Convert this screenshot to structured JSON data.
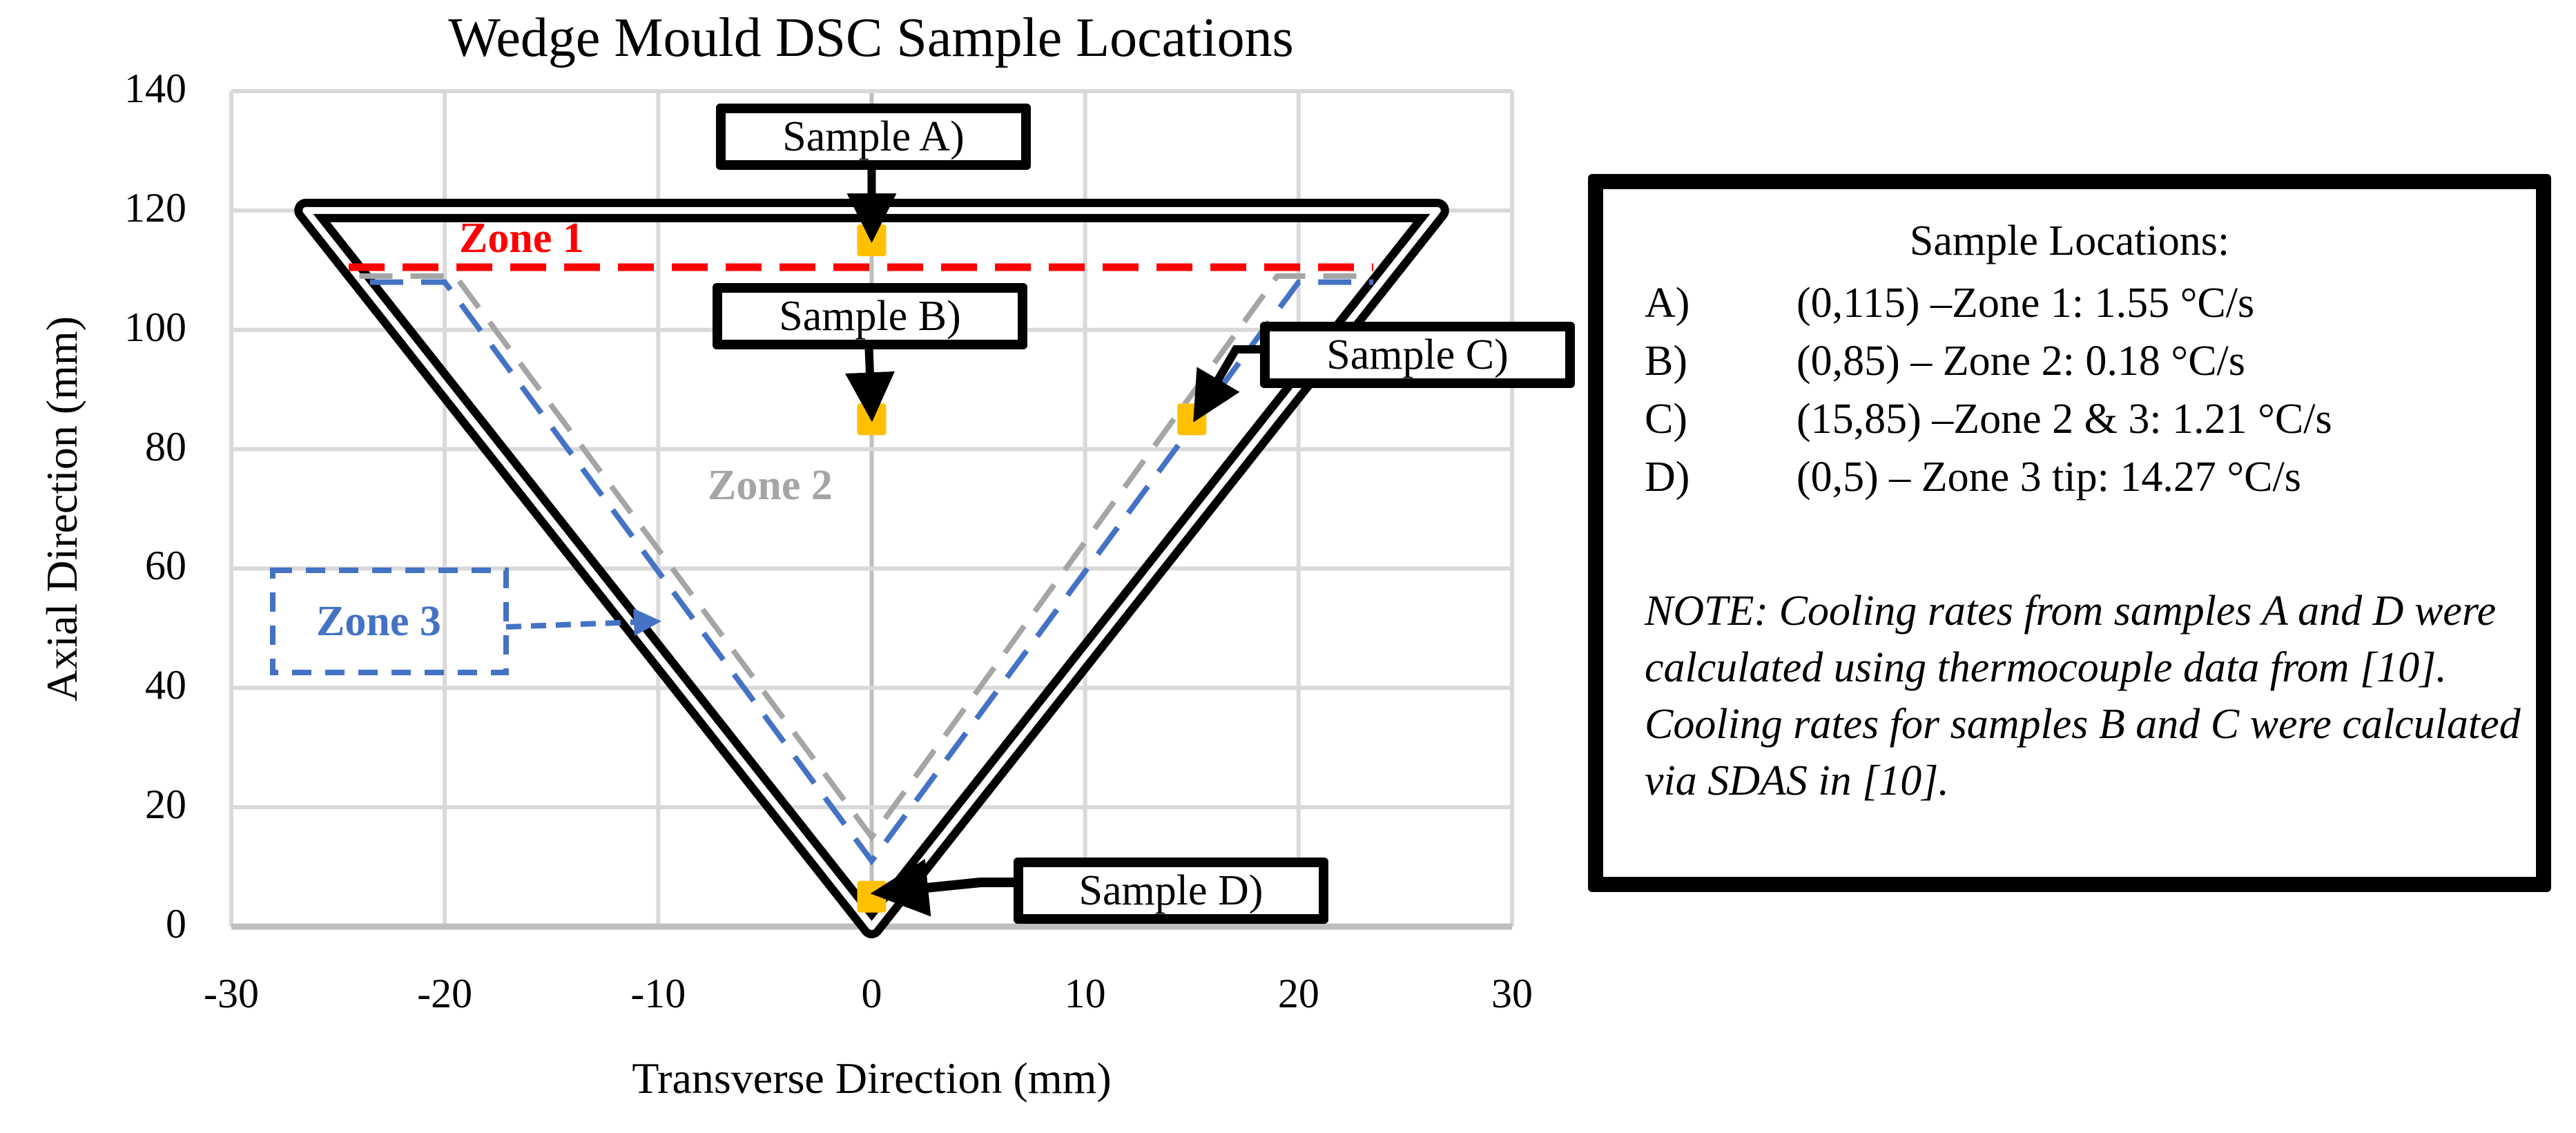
{
  "title": "Wedge Mould DSC Sample Locations",
  "axes": {
    "x": {
      "label": "Transverse Direction (mm)",
      "ticks": [
        "-30",
        "-20",
        "-10",
        "0",
        "10",
        "20",
        "30"
      ]
    },
    "y": {
      "label": "Axial Direction (mm)",
      "ticks": [
        "140",
        "120",
        "100",
        "80",
        "60",
        "40",
        "20",
        "0"
      ]
    }
  },
  "callouts": {
    "a": "Sample A)",
    "b": "Sample B)",
    "c": "Sample C)",
    "d": "Sample D)"
  },
  "zones": {
    "zone1": {
      "label": "Zone 1",
      "color": "#FF0000"
    },
    "zone2": {
      "label": "Zone 2",
      "color": "#A5A5A5"
    },
    "zone3": {
      "label": "Zone 3",
      "color": "#4472C4"
    }
  },
  "colors": {
    "marker": "#FFC000",
    "grid": "#D9D9D9",
    "wedge": "#000000"
  },
  "legend": {
    "title": "Sample Locations:",
    "rows": [
      {
        "key": "A)",
        "text": "(0,115) –Zone 1: 1.55 °C/s"
      },
      {
        "key": "B)",
        "text": "(0,85) – Zone 2: 0.18 °C/s"
      },
      {
        "key": "C)",
        "text": "(15,85) –Zone 2 & 3: 1.21 °C/s"
      },
      {
        "key": "D)",
        "text": "(0,5) – Zone 3 tip: 14.27 °C/s"
      }
    ],
    "note": "NOTE: Cooling rates from samples A and D were calculated using thermocouple data from [10]. Cooling rates for samples B and C were calculated via SDAS in [10]."
  },
  "chart_data": {
    "type": "scatter",
    "title": "Wedge Mould DSC Sample Locations",
    "xlabel": "Transverse Direction (mm)",
    "ylabel": "Axial Direction (mm)",
    "xlim": [
      -30,
      30
    ],
    "ylim": [
      0,
      140
    ],
    "xticks": [
      -30,
      -20,
      -10,
      0,
      10,
      20,
      30
    ],
    "yticks": [
      0,
      20,
      40,
      60,
      80,
      100,
      120,
      140
    ],
    "grid": true,
    "series": [
      {
        "name": "Samples",
        "type": "scatter",
        "color": "#FFC000",
        "points": [
          {
            "label": "A",
            "x": 0,
            "y": 115
          },
          {
            "label": "B",
            "x": 0,
            "y": 85
          },
          {
            "label": "C",
            "x": 15,
            "y": 85
          },
          {
            "label": "D",
            "x": 0,
            "y": 5
          }
        ]
      },
      {
        "name": "Wedge outline",
        "type": "line",
        "color": "#000000",
        "points": [
          [
            -26.5,
            120
          ],
          [
            26.5,
            120
          ],
          [
            0,
            0
          ],
          [
            -26.5,
            120
          ]
        ]
      },
      {
        "name": "Zone 1 boundary",
        "type": "line",
        "style": "dashed",
        "color": "#FF0000",
        "points": [
          [
            -24.5,
            110.5
          ],
          [
            23.5,
            110.5
          ]
        ]
      },
      {
        "name": "Zone 2 boundary",
        "type": "line",
        "style": "dashed",
        "color": "#A5A5A5",
        "points": [
          [
            -24,
            109
          ],
          [
            -19.5,
            109
          ],
          [
            0,
            15
          ],
          [
            19,
            109
          ],
          [
            23.5,
            109
          ]
        ]
      },
      {
        "name": "Zone 3 boundary",
        "type": "line",
        "style": "dashed",
        "color": "#4472C4",
        "points": [
          [
            -23.5,
            108
          ],
          [
            -20,
            108
          ],
          [
            0,
            11
          ],
          [
            20,
            108
          ],
          [
            23.5,
            108
          ]
        ]
      }
    ],
    "annotations": [
      "Zone 1",
      "Zone 2",
      "Zone 3",
      "Sample A)",
      "Sample B)",
      "Sample C)",
      "Sample D)"
    ],
    "legend": {
      "position": "right",
      "entries": [
        "A) (0,115) –Zone 1: 1.55 °C/s",
        "B) (0,85) – Zone 2: 0.18 °C/s",
        "C) (15,85) –Zone 2 & 3: 1.21 °C/s",
        "D) (0,5) – Zone 3 tip: 14.27 °C/s"
      ]
    }
  }
}
